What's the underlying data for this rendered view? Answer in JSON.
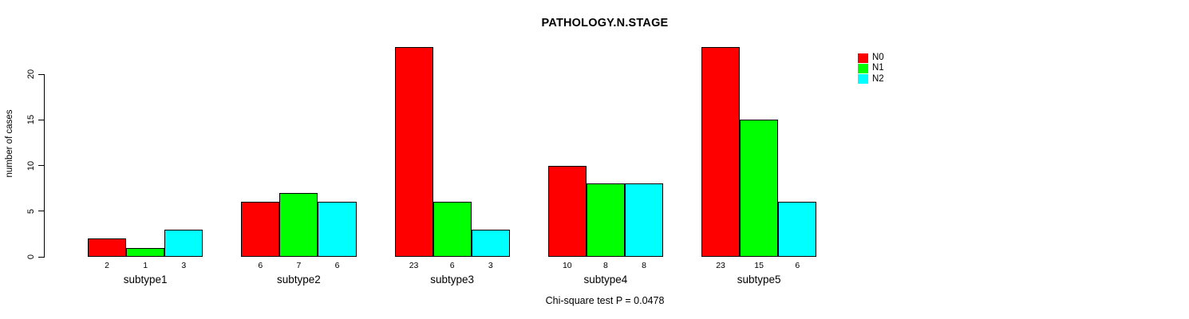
{
  "title": "PATHOLOGY.N.STAGE",
  "annotation": "Chi-square test P = 0.0478",
  "y_axis": {
    "label": "number of cases"
  },
  "colors": {
    "N0": "#FF0000",
    "N1": "#00FF00",
    "N2": "#00FFFF",
    "axis": "#000000",
    "background": "#FFFFFF"
  },
  "legend": {
    "position": "top-right",
    "entries": [
      {
        "label": "N0",
        "color": "#FF0000"
      },
      {
        "label": "N1",
        "color": "#00FF00"
      },
      {
        "label": "N2",
        "color": "#00FFFF"
      }
    ]
  },
  "chart_data": {
    "type": "bar",
    "title": "PATHOLOGY.N.STAGE",
    "categories": [
      "subtype1",
      "subtype2",
      "subtype3",
      "subtype4",
      "subtype5"
    ],
    "series": [
      {
        "name": "N0",
        "color": "#FF0000",
        "values": [
          2,
          6,
          23,
          10,
          23
        ]
      },
      {
        "name": "N1",
        "color": "#00FF00",
        "values": [
          1,
          7,
          6,
          8,
          15
        ]
      },
      {
        "name": "N2",
        "color": "#00FFFF",
        "values": [
          3,
          6,
          3,
          8,
          6
        ]
      }
    ],
    "xlabel": "",
    "ylabel": "number of cases",
    "ylim": [
      0,
      23
    ],
    "yticks": [
      0,
      5,
      10,
      15,
      20
    ],
    "grid": false,
    "grouped": true,
    "bar_value_labels_shown": true,
    "legend_position": "top-right",
    "annotation": "Chi-square test P = 0.0478"
  }
}
